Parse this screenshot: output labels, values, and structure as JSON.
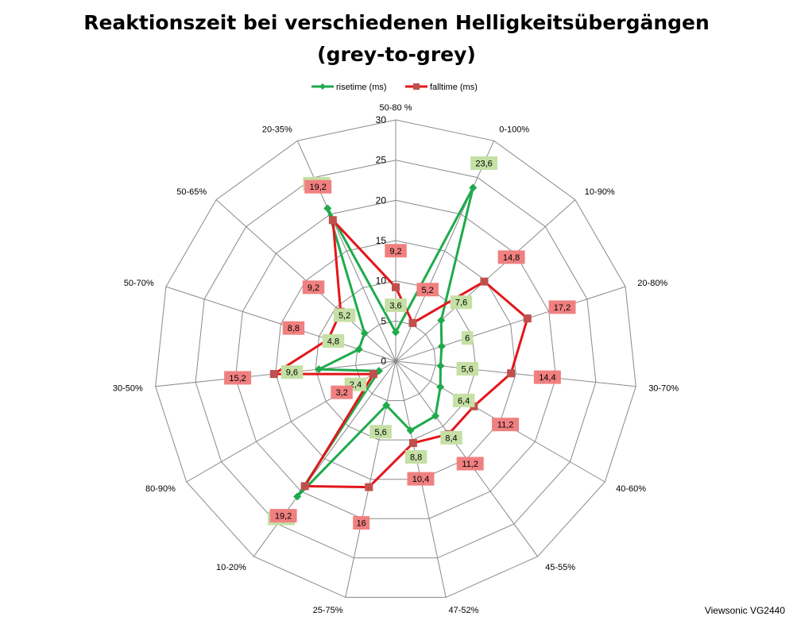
{
  "chart_data": {
    "type": "radar",
    "title": "Reaktionszeit bei verschiedenen Helligkeitsübergängen",
    "subtitle": "(grey-to-grey)",
    "categories": [
      "50-80 %",
      "0-100%",
      "10-90%",
      "20-80%",
      "30-70%",
      "40-60%",
      "45-55%",
      "47-52%",
      "25-75%",
      "10-20%",
      "80-90%",
      "30-50%",
      "50-70%",
      "50-65%",
      "20-35%"
    ],
    "series": [
      {
        "name": "risetime (ms)",
        "color": "#1faa4c",
        "marker": "diamond",
        "values": [
          3.6,
          23.6,
          7.6,
          6,
          5.6,
          6.4,
          8.4,
          8.8,
          5.6,
          20.8,
          2.4,
          9.6,
          4.8,
          5.2,
          20.8
        ]
      },
      {
        "name": "falltime (ms)",
        "color": "#e3161b",
        "marker": "square",
        "values": [
          9.2,
          5.2,
          14.8,
          17.2,
          14.4,
          11.2,
          11.2,
          10.4,
          16,
          19.2,
          3.2,
          15.2,
          8.8,
          9.2,
          19.2
        ]
      }
    ],
    "rlim": [
      0,
      30
    ],
    "ticks": [
      0,
      5,
      10,
      15,
      20,
      25,
      30
    ],
    "legend": "top"
  },
  "watermark": "Viewsonic VG2440",
  "colors": {
    "rise_label_bg": "#c5e0a5",
    "fall_label_bg": "#f08080",
    "grid": "#8a8a8a"
  }
}
